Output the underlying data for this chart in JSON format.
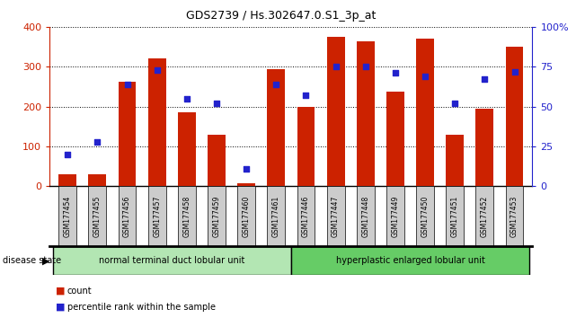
{
  "title": "GDS2739 / Hs.302647.0.S1_3p_at",
  "categories": [
    "GSM177454",
    "GSM177455",
    "GSM177456",
    "GSM177457",
    "GSM177458",
    "GSM177459",
    "GSM177460",
    "GSM177461",
    "GSM177446",
    "GSM177447",
    "GSM177448",
    "GSM177449",
    "GSM177450",
    "GSM177451",
    "GSM177452",
    "GSM177453"
  ],
  "counts": [
    30,
    30,
    262,
    320,
    185,
    128,
    8,
    293,
    200,
    375,
    365,
    237,
    370,
    128,
    195,
    350
  ],
  "percentiles": [
    20,
    28,
    64,
    73,
    55,
    52,
    11,
    64,
    57,
    75,
    75,
    71,
    69,
    52,
    67,
    72
  ],
  "group1_label": "normal terminal duct lobular unit",
  "group1_count": 8,
  "group2_label": "hyperplastic enlarged lobular unit",
  "group2_count": 8,
  "disease_state_label": "disease state",
  "legend_count": "count",
  "legend_percentile": "percentile rank within the sample",
  "ylim_left": [
    0,
    400
  ],
  "ylim_right": [
    0,
    100
  ],
  "yticks_left": [
    0,
    100,
    200,
    300,
    400
  ],
  "yticks_right": [
    0,
    25,
    50,
    75,
    100
  ],
  "bar_color": "#cc2200",
  "scatter_color": "#2222cc",
  "group1_color": "#b3e6b3",
  "group2_color": "#66cc66",
  "axis_label_color_left": "#cc2200",
  "axis_label_color_right": "#2222cc",
  "xticklabel_bg": "#cccccc"
}
